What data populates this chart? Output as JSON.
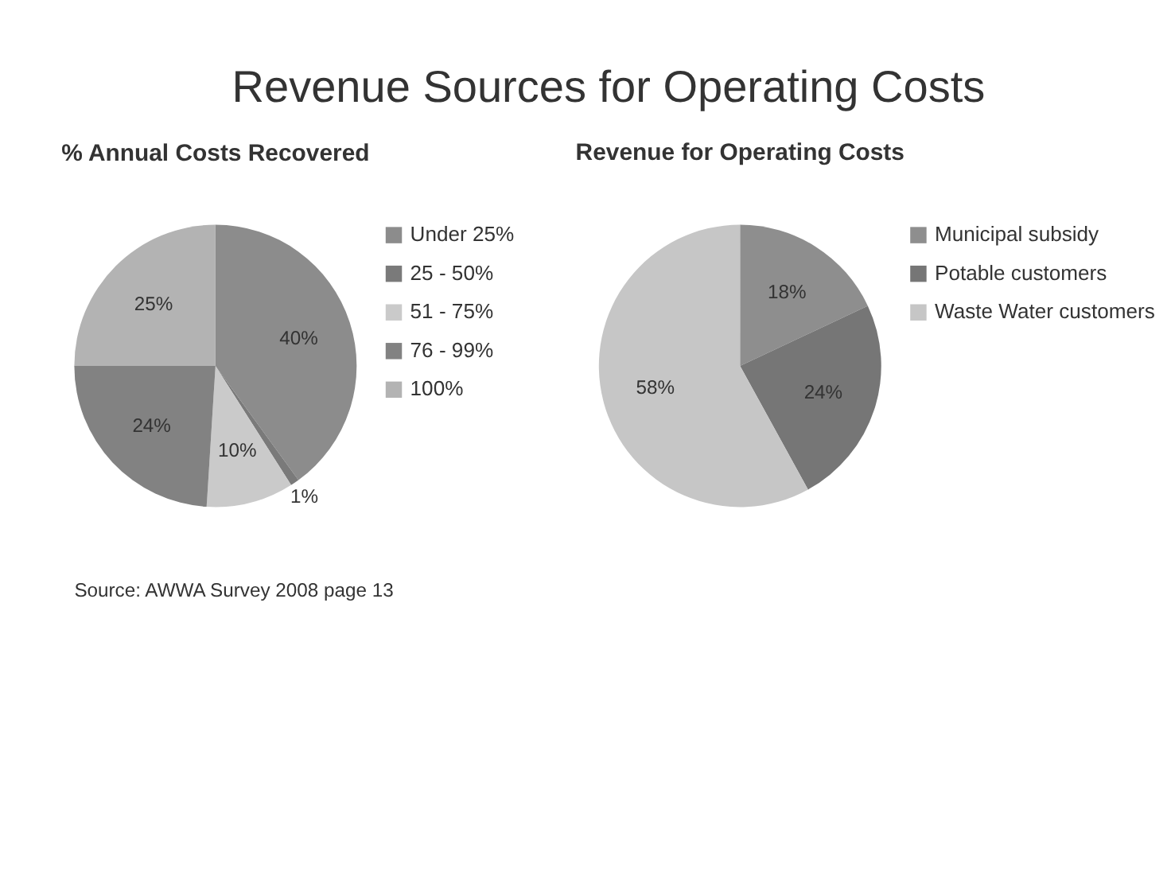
{
  "chart_data": [
    {
      "type": "pie",
      "title": "Revenue Sources for Operating Costs",
      "subtitle": "% Annual Costs Recovered",
      "categories": [
        "Under 25%",
        "25 - 50%",
        "51 - 75%",
        "76 - 99%",
        "100%"
      ],
      "values": [
        40,
        1,
        10,
        24,
        25
      ],
      "value_labels": [
        "40%",
        "1%",
        "10%",
        "24%",
        "25%"
      ],
      "colors": [
        "#8c8c8c",
        "#7a7a7a",
        "#cacaca",
        "#828282",
        "#b3b3b3"
      ],
      "legend": "right",
      "annotations": [
        "Source: AWWA Survey 2008 page 13"
      ]
    },
    {
      "type": "pie",
      "subtitle": "Revenue for Operating Costs",
      "categories": [
        "Municipal subsidy",
        "Potable customers",
        "Waste Water customers"
      ],
      "values": [
        18,
        24,
        58
      ],
      "value_labels": [
        "18%",
        "24%",
        "58%"
      ],
      "colors": [
        "#8e8e8e",
        "#767676",
        "#c6c6c6"
      ],
      "legend": "right"
    }
  ]
}
